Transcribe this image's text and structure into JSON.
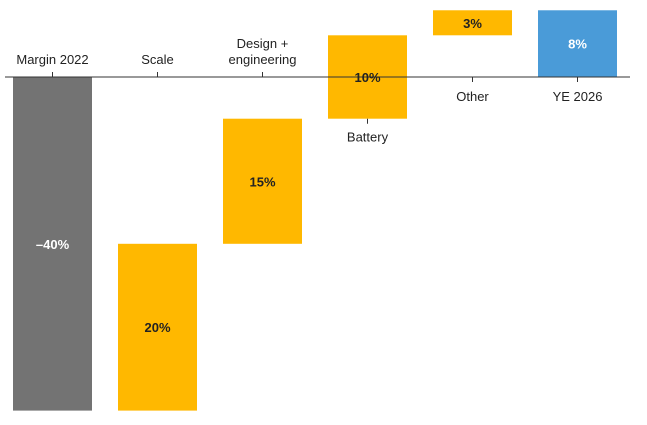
{
  "chart_data": {
    "type": "bar",
    "subtype": "waterfall",
    "title": "",
    "xlabel": "",
    "ylabel": "",
    "ylim": [
      -40,
      13
    ],
    "grid": false,
    "legend": "none",
    "categories": [
      {
        "label": [
          "Margin 2022"
        ],
        "kind": "total",
        "start": 0,
        "end": -40,
        "value_label": "–40%",
        "label_position": "above-axis"
      },
      {
        "label": [
          "Scale"
        ],
        "kind": "delta",
        "start": -40,
        "end": -20,
        "value_label": "20%",
        "label_position": "above-axis"
      },
      {
        "label": [
          "Design +",
          "engineering"
        ],
        "kind": "delta",
        "start": -20,
        "end": -5,
        "value_label": "15%",
        "label_position": "above-axis"
      },
      {
        "label": [
          "Battery"
        ],
        "kind": "delta",
        "start": -5,
        "end": 5,
        "value_label": "10%",
        "label_position": "below-bar"
      },
      {
        "label": [
          "Other"
        ],
        "kind": "delta",
        "start": 5,
        "end": 8,
        "value_label": "3%",
        "label_position": "below-axis"
      },
      {
        "label": [
          "YE 2026"
        ],
        "kind": "total",
        "start": 0,
        "end": 8,
        "value_label": "8%",
        "label_position": "below-axis"
      }
    ],
    "colors": {
      "start_total": "#737373",
      "increase": "#FFB800",
      "end_total": "#4A9BD8",
      "axis": "#333333",
      "label_dark": "#222222",
      "label_light": "#ffffff"
    }
  }
}
